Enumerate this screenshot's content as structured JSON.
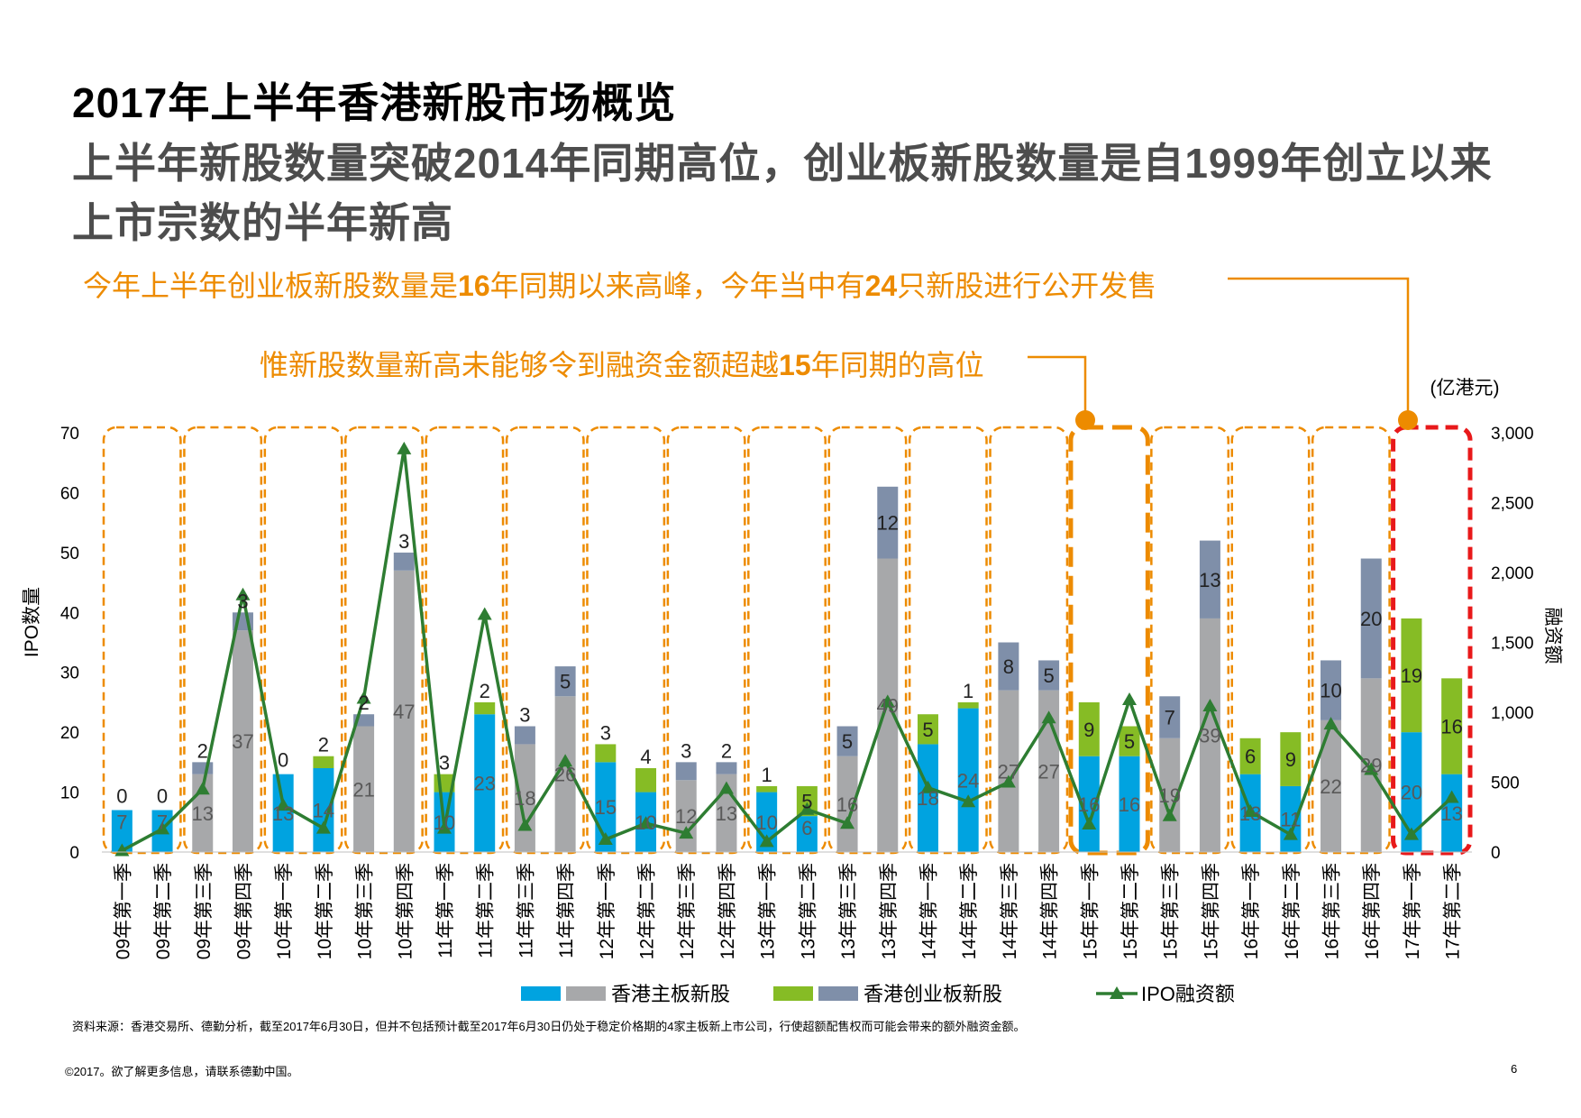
{
  "page": {
    "title": "2017年上半年香港新股市场概览",
    "subtitle": "上半年新股数量突破2014年同期高位，创业板新股数量是自1999年创立以来上市宗数的半年新高",
    "callout1": {
      "pre": "今年上半年创业板新股数量是",
      "b1": "16",
      "mid": "年同期以来高峰，今年当中有",
      "b2": "24",
      "post": "只新股进行公开发售"
    },
    "callout2": {
      "pre": "惟新股数量新高未能够令到融资金额超越",
      "b1": "15",
      "post": "年同期的高位"
    },
    "source": "资料来源：香港交易所、德勤分析，截至2017年6月30日，但并不包括预计截至2017年6月30日仍处于稳定价格期的4家主板新上市公司，行使超额配售权而可能会带来的额外融资金额。",
    "copyright": "©2017。欲了解更多信息，请联系德勤中国。",
    "page_number": "6"
  },
  "chart_data": {
    "type": "bar",
    "stacked": true,
    "ylabel": "IPO数量",
    "y2label": "融资额",
    "y2unit": "(亿港元)",
    "ylim": [
      0,
      70
    ],
    "y2lim": [
      0,
      3000
    ],
    "yticks": [
      "0",
      "10",
      "20",
      "30",
      "40",
      "50",
      "60",
      "70"
    ],
    "y2ticks": [
      "0",
      "500",
      "1,000",
      "1,500",
      "2,000",
      "2,500",
      "3,000"
    ],
    "grid": false,
    "legend": {
      "position": "bottom",
      "items": [
        "香港主板新股",
        "香港创业板新股",
        "IPO融资额"
      ]
    },
    "colors": {
      "main_q2": "#00A3E0",
      "main_other": "#A7A8AA",
      "gem_q2": "#86BC25",
      "gem_other": "#7F8FA9",
      "line": "#2E7D32",
      "box": "#ED8B00",
      "box_2017": "#E8191A"
    },
    "categories": [
      "09年第一季",
      "09年第二季",
      "09年第三季",
      "09年第四季",
      "10年第一季",
      "10年第二季",
      "10年第三季",
      "10年第四季",
      "11年第一季",
      "11年第二季",
      "11年第三季",
      "11年第四季",
      "12年第一季",
      "12年第二季",
      "12年第三季",
      "12年第四季",
      "13年第一季",
      "13年第二季",
      "13年第三季",
      "13年第四季",
      "14年第一季",
      "14年第二季",
      "14年第三季",
      "14年第四季",
      "15年第一季",
      "15年第二季",
      "15年第三季",
      "15年第四季",
      "16年第一季",
      "16年第二季",
      "16年第三季",
      "16年第四季",
      "17年第一季",
      "17年第二季"
    ],
    "series": [
      {
        "name": "香港主板新股",
        "values": [
          7,
          7,
          13,
          37,
          13,
          14,
          21,
          47,
          10,
          23,
          18,
          26,
          15,
          10,
          12,
          13,
          10,
          6,
          16,
          49,
          18,
          24,
          27,
          27,
          16,
          16,
          19,
          39,
          13,
          11,
          22,
          29,
          20,
          13
        ]
      },
      {
        "name": "香港创业板新股",
        "values": [
          0,
          0,
          2,
          3,
          0,
          2,
          2,
          3,
          3,
          2,
          3,
          5,
          3,
          4,
          3,
          2,
          1,
          5,
          5,
          12,
          5,
          1,
          8,
          5,
          9,
          5,
          7,
          13,
          6,
          9,
          10,
          20,
          19,
          16
        ]
      },
      {
        "name": "IPO融资额",
        "values": [
          10,
          165,
          450,
          1840,
          335,
          170,
          1100,
          2885,
          170,
          1700,
          190,
          650,
          90,
          205,
          135,
          455,
          75,
          305,
          205,
          1075,
          460,
          360,
          500,
          960,
          200,
          1090,
          260,
          1045,
          290,
          125,
          915,
          590,
          125,
          390
        ]
      }
    ],
    "main_labels": [
      "7",
      "7",
      "13",
      "37",
      "13",
      "14",
      "21",
      "47",
      "10",
      "23",
      "18",
      "26",
      "15",
      "10",
      "12",
      "13",
      "10",
      "6",
      "16",
      "49",
      "18",
      "24",
      "27",
      "27",
      "16",
      "16",
      "19",
      "39",
      "13",
      "11",
      "22",
      "29",
      "20",
      "13"
    ],
    "gem_labels": [
      "0",
      "0",
      "2",
      "3",
      "0",
      "2",
      "2",
      "3",
      "3",
      "2",
      "3",
      "5",
      "3",
      "4",
      "3",
      "2",
      "1",
      "5",
      "5",
      "12",
      "5",
      "1",
      "8",
      "5",
      "9",
      "5",
      "7",
      "13",
      "6",
      "9",
      "10",
      "20",
      "19",
      "16"
    ]
  }
}
